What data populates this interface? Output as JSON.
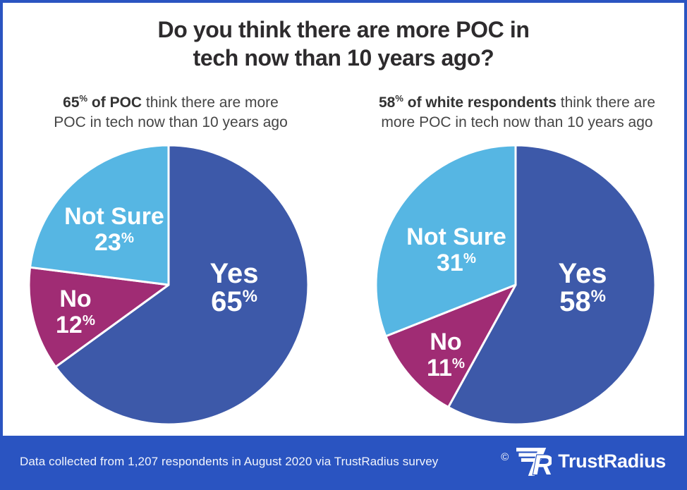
{
  "title": {
    "line1": "Do you think there are more POC in",
    "line2": "tech now than 10 years ago?"
  },
  "charts": [
    {
      "subtitle": {
        "bold_value": "65",
        "percent": "%",
        "bold_rest": " of POC",
        "line1_rest": " think there are more",
        "line2": "POC in tech now than 10 years ago"
      }
    },
    {
      "subtitle": {
        "bold_value": "58",
        "percent": "%",
        "bold_rest": " of white respondents",
        "line1_rest": " think there are",
        "line2": "more POC in tech now than 10 years ago"
      }
    }
  ],
  "chart_data": [
    {
      "type": "pie",
      "title": "65% of POC think there are more POC in tech now than 10 years ago",
      "labels": [
        "Yes",
        "No",
        "Not Sure"
      ],
      "values": [
        65,
        12,
        23
      ],
      "unit": "%",
      "colors": [
        "#3d59a9",
        "#a02c74",
        "#56b6e3"
      ],
      "start_angle_deg": 0,
      "direction": "clockwise",
      "legend": "none",
      "label_position": "inside"
    },
    {
      "type": "pie",
      "title": "58% of white respondents think there are more POC in tech now than 10 years ago",
      "labels": [
        "Yes",
        "No",
        "Not Sure"
      ],
      "values": [
        58,
        11,
        31
      ],
      "unit": "%",
      "colors": [
        "#3d59a9",
        "#a02c74",
        "#56b6e3"
      ],
      "start_angle_deg": 0,
      "direction": "clockwise",
      "legend": "none",
      "label_position": "inside"
    }
  ],
  "footer": {
    "note": "Data collected from 1,207 respondents in August 2020 via TrustRadius survey",
    "copyright": "©",
    "brand": "TrustRadius"
  },
  "colors": {
    "accent_blue": "#2a54c1",
    "pie_yes_blue": "#3d59a9",
    "pie_no_magenta": "#a02c74",
    "pie_not_sure_light_blue": "#56b6e3",
    "title_text": "#2d2b2d",
    "subtitle_text": "#454545",
    "label_text": "#ffffff"
  }
}
